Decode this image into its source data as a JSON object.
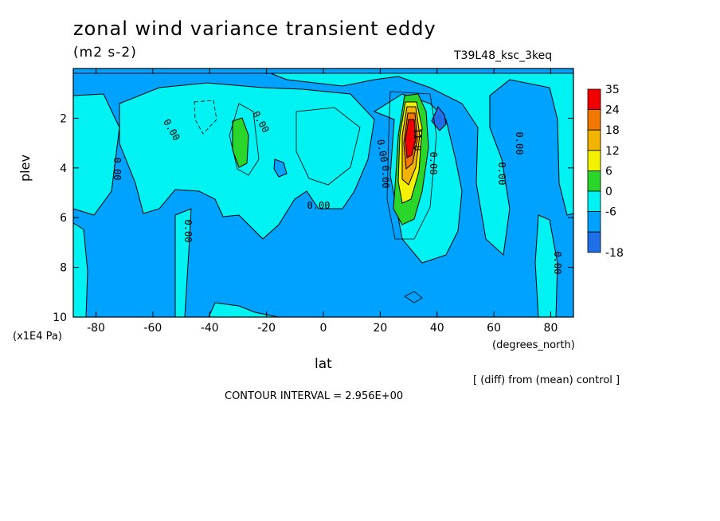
{
  "header": {
    "title": "zonal wind variance transient eddy",
    "units": "(m2 s-2)",
    "run": "T39L48_ksc_3keq"
  },
  "footer": {
    "diff_note": "[ (diff) from (mean) control ]",
    "contour_interval": "CONTOUR INTERVAL = 2.956E+00"
  },
  "colors": {
    "level_m18": "#1f6fe8",
    "level_m6": "#00a2ff",
    "level_0": "#00f2f2",
    "level_6": "#2ad62a",
    "level_12": "#f2f200",
    "level_18": "#f2b400",
    "level_24": "#f27800",
    "level_35": "#f20000"
  },
  "chart_data": {
    "type": "heatmap",
    "xlabel": "lat",
    "x_unit": "(degrees_north)",
    "ylabel": "plev",
    "y_unit": "(x1E4 Pa)",
    "xlim": [
      -88,
      88
    ],
    "ylim": [
      10,
      0
    ],
    "x_ticks": [
      -80,
      -60,
      -40,
      -20,
      0,
      20,
      40,
      60,
      80
    ],
    "y_ticks": [
      2,
      4,
      6,
      8,
      10
    ],
    "colorbar": {
      "labels": [
        "35",
        "24",
        "18",
        "12",
        "6",
        "0",
        "-6",
        "-18"
      ],
      "colors": [
        "#f20000",
        "#f27800",
        "#f2b400",
        "#f2f200",
        "#2ad62a",
        "#00f2f2",
        "#00a2ff",
        "#1f6fe8"
      ]
    },
    "contour_labels": [
      "0.00",
      "0.00",
      "0.00",
      "0.00",
      "0.00",
      "0.00",
      "0.00",
      "0.00",
      "0.00",
      "0.00",
      "0.00",
      "11.8"
    ],
    "features": [
      {
        "description": "positive maximum",
        "lat": 30,
        "plev": 2.8,
        "value": 35
      },
      {
        "description": "negative minimum",
        "lat": 40,
        "plev": 2.0,
        "value": -18
      },
      {
        "description": "secondary positive",
        "lat": -30,
        "plev": 3.0,
        "value": 6
      }
    ]
  }
}
